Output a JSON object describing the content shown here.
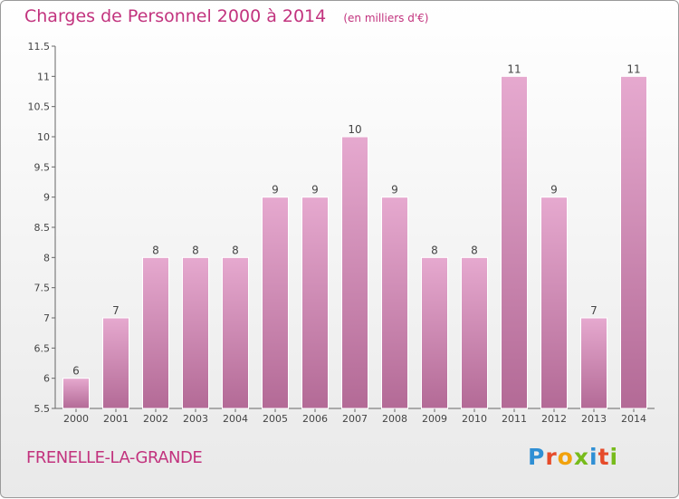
{
  "header": {
    "title": "Charges de Personnel 2000 à 2014",
    "unit": "(en milliers d'€)"
  },
  "footer": {
    "commune": "FRENELLE-LA-GRANDE",
    "logo_text": "Proxiti"
  },
  "colors": {
    "title": "#c2337e",
    "bar_light": "#e6a9cf",
    "bar_dark": "#b36a96",
    "logo_letters": [
      "#2f8fd4",
      "#e64b2a",
      "#f2a20c",
      "#77bb1b",
      "#2f8fd4",
      "#e64b2a",
      "#77bb1b"
    ]
  },
  "chart_data": {
    "type": "bar",
    "title": "Charges de Personnel 2000 à 2014",
    "subtitle": "(en milliers d'€)",
    "categories": [
      "2000",
      "2001",
      "2002",
      "2003",
      "2004",
      "2005",
      "2006",
      "2007",
      "2008",
      "2009",
      "2010",
      "2011",
      "2012",
      "2013",
      "2014"
    ],
    "values": [
      6,
      7,
      8,
      8,
      8,
      9,
      9,
      10,
      9,
      8,
      8,
      11,
      9,
      7,
      11
    ],
    "ylim": [
      5.5,
      11.5
    ],
    "yticks": [
      "5.5",
      "6",
      "6.5",
      "7",
      "7.5",
      "8",
      "8.5",
      "9",
      "9.5",
      "10",
      "10.5",
      "11",
      "11.5"
    ],
    "grid": false,
    "legend": "none"
  }
}
